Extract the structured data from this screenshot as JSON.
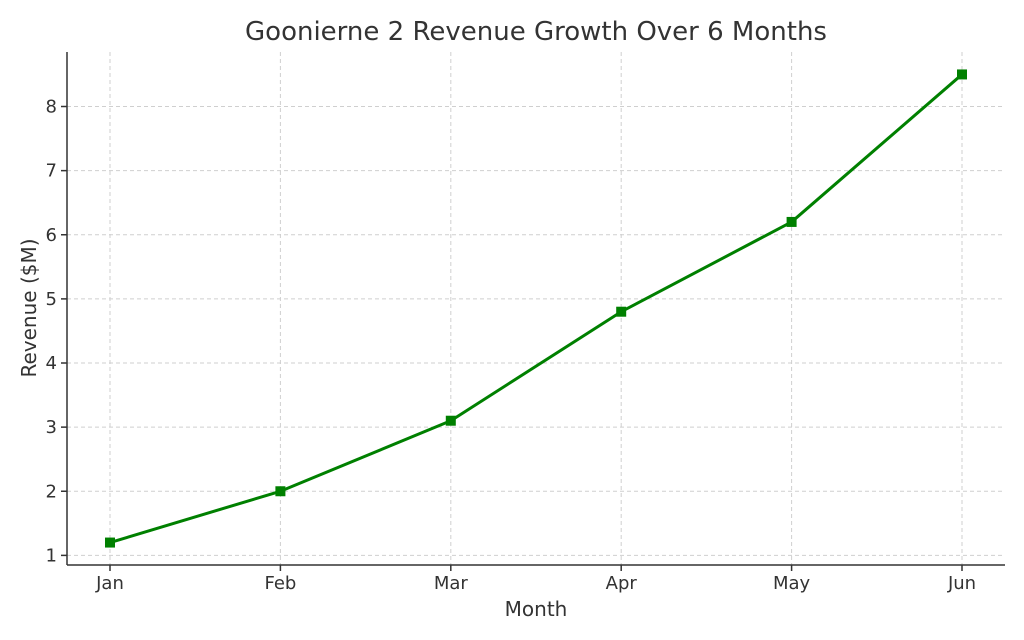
{
  "chart_data": {
    "type": "line",
    "title": "Goonierne 2 Revenue Growth Over 6 Months",
    "xlabel": "Month",
    "ylabel": "Revenue ($M)",
    "categories": [
      "Jan",
      "Feb",
      "Mar",
      "Apr",
      "May",
      "Jun"
    ],
    "series": [
      {
        "values": [
          1.2,
          2.0,
          3.1,
          4.8,
          6.2,
          8.5
        ],
        "color": "#008000",
        "marker": "square"
      }
    ],
    "yticks": [
      1,
      2,
      3,
      4,
      5,
      6,
      7,
      8
    ],
    "ylim": [
      0.85,
      8.85
    ],
    "grid": true,
    "legend": "none"
  }
}
